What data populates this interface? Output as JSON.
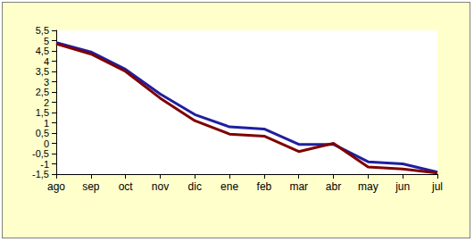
{
  "chart_data": {
    "type": "line",
    "categories": [
      "ago",
      "sep",
      "oct",
      "nov",
      "dic",
      "ene",
      "feb",
      "mar",
      "abr",
      "may",
      "jun",
      "jul"
    ],
    "series": [
      {
        "color": "#1f1fa0",
        "values": [
          4.9,
          4.45,
          3.6,
          2.4,
          1.4,
          0.8,
          0.7,
          -0.05,
          -0.05,
          -0.9,
          -1.0,
          -1.4
        ]
      },
      {
        "color": "#800000",
        "values": [
          4.85,
          4.35,
          3.5,
          2.2,
          1.1,
          0.45,
          0.35,
          -0.4,
          0.0,
          -1.15,
          -1.25,
          -1.45
        ]
      }
    ],
    "ylim": [
      -1.5,
      5.5
    ],
    "yticks": [
      {
        "value": 5.5,
        "label": "5,5"
      },
      5,
      {
        "value": 4.5,
        "label": "4,5"
      },
      4,
      {
        "value": 3.5,
        "label": "3,5"
      },
      3,
      {
        "value": 2.5,
        "label": "2,5"
      },
      2,
      {
        "value": 1.5,
        "label": "1,5"
      },
      1,
      {
        "value": 0.5,
        "label": "0,5"
      },
      0,
      {
        "value": -0.5,
        "label": "-0,5"
      },
      -1,
      {
        "value": -1.5,
        "label": "-1,5"
      }
    ],
    "grid": false
  }
}
